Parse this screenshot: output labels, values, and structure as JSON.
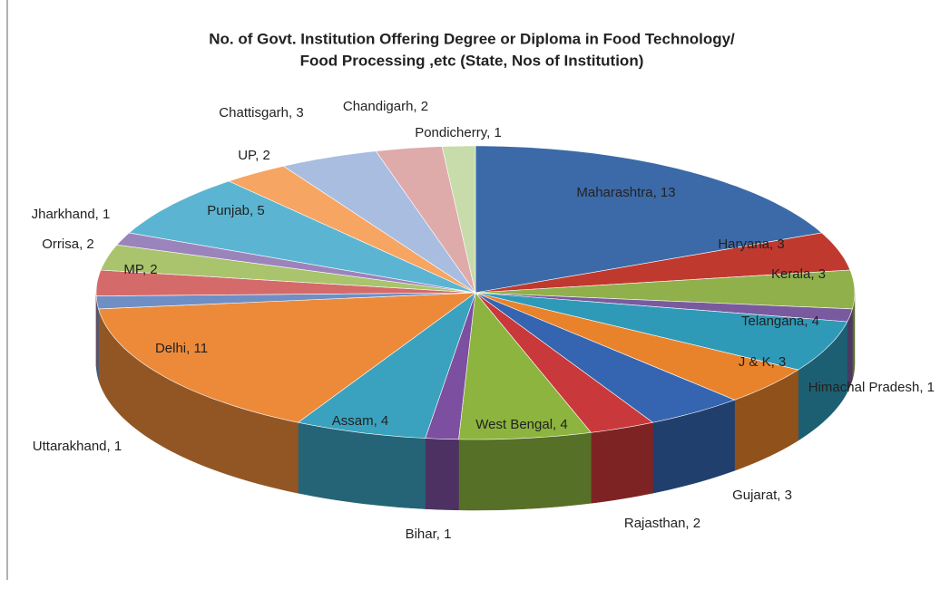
{
  "chart_data": {
    "type": "pie3d",
    "title": [
      "No. of Govt. Institution Offering Degree or Diploma in Food Technology/",
      "Food Processing ,etc (State, Nos of Institution)"
    ],
    "values": [
      13,
      3,
      3,
      1,
      4,
      3,
      3,
      2,
      4,
      1,
      4,
      11,
      1,
      2,
      2,
      1,
      5,
      2,
      3,
      2,
      1
    ],
    "value_labels": [
      "Maharashtra, 13",
      "Haryana, 3",
      "Kerala, 3",
      "Himachal Pradesh, 1",
      "Telangana, 4",
      "J & K, 3",
      "Gujarat, 3",
      "Rajasthan, 2",
      "West Bengal, 4",
      "Bihar, 1",
      "Assam, 4",
      "Delhi, 11",
      "Uttarakhand, 1",
      "MP, 2",
      "Orrisa, 2",
      "Jharkhand, 1",
      "Punjab, 5",
      "UP, 2",
      "Chattisgarh, 3",
      "Chandigarh, 2",
      "Pondicherry, 1"
    ],
    "colors": [
      "#3c6aa8",
      "#c0392f",
      "#8fb04a",
      "#7a5a9e",
      "#2f9ab8",
      "#e8832c",
      "#3565b0",
      "#c9383a",
      "#8cb43f",
      "#7d4fa0",
      "#3aa2be",
      "#ec8a3a",
      "#6f8fc4",
      "#d46a6a",
      "#a9c46c",
      "#9b84bb",
      "#5bb5d2",
      "#f6a562",
      "#a9bde0",
      "#dfaaaa",
      "#c7dcaa"
    ]
  }
}
